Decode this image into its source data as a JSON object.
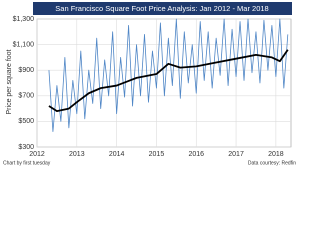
{
  "chart_data": {
    "type": "line",
    "title": "San Francisco Square Foot Price Analysis: Jan 2012 - Mar 2018",
    "y_label": "Price per square foot",
    "footer_left": "Chart by first tuesday",
    "footer_right": "Data courtesy: Redfin",
    "xlim": [
      2012,
      2018.38
    ],
    "xticks": [
      2012,
      2013,
      2014,
      2015,
      2016,
      2017,
      2018
    ],
    "ylim": [
      300,
      1300
    ],
    "yticks": [
      {
        "value": 300,
        "label": "$300"
      },
      {
        "value": 500,
        "label": "$500"
      },
      {
        "value": 700,
        "label": "$700"
      },
      {
        "value": 900,
        "label": "$900"
      },
      {
        "value": 1100,
        "label": "$1,100"
      },
      {
        "value": 1300,
        "label": "$1,300"
      }
    ],
    "grid": true,
    "series": [
      {
        "color": "#4f86c6",
        "x": [
          2012.3,
          2012.4,
          2012.5,
          2012.6,
          2012.7,
          2012.8,
          2012.9,
          2013.0,
          2013.1,
          2013.2,
          2013.3,
          2013.4,
          2013.5,
          2013.6,
          2013.7,
          2013.8,
          2013.9,
          2014.0,
          2014.1,
          2014.2,
          2014.3,
          2014.4,
          2014.5,
          2014.6,
          2014.7,
          2014.8,
          2014.9,
          2015.0,
          2015.1,
          2015.2,
          2015.3,
          2015.4,
          2015.5,
          2015.6,
          2015.7,
          2015.8,
          2015.9,
          2016.0,
          2016.1,
          2016.2,
          2016.3,
          2016.4,
          2016.5,
          2016.6,
          2016.7,
          2016.8,
          2016.9,
          2017.0,
          2017.1,
          2017.2,
          2017.3,
          2017.4,
          2017.5,
          2017.6,
          2017.7,
          2017.8,
          2017.9,
          2018.0,
          2018.1,
          2018.2,
          2018.3
        ],
        "values": [
          900,
          420,
          780,
          500,
          1000,
          450,
          820,
          560,
          1050,
          520,
          900,
          640,
          1150,
          600,
          980,
          700,
          1200,
          560,
          1000,
          690,
          1250,
          620,
          1100,
          700,
          1180,
          650,
          1050,
          760,
          1270,
          700,
          1150,
          780,
          1300,
          680,
          1200,
          800,
          1100,
          720,
          1280,
          820,
          1200,
          760,
          1150,
          860,
          1300,
          780,
          1220,
          850,
          1280,
          820,
          1300,
          880,
          1200,
          800,
          1290,
          900,
          1250,
          850,
          1300,
          760,
          1180
        ]
      },
      {
        "color": "#000000",
        "x": [
          2012.3,
          2012.5,
          2012.8,
          2013.0,
          2013.3,
          2013.6,
          2014.0,
          2014.5,
          2015.0,
          2015.3,
          2015.6,
          2016.0,
          2016.5,
          2017.0,
          2017.5,
          2017.9,
          2018.1,
          2018.3
        ],
        "values": [
          620,
          580,
          600,
          650,
          720,
          760,
          780,
          840,
          870,
          950,
          920,
          930,
          960,
          990,
          1020,
          1000,
          970,
          1060
        ]
      }
    ]
  }
}
